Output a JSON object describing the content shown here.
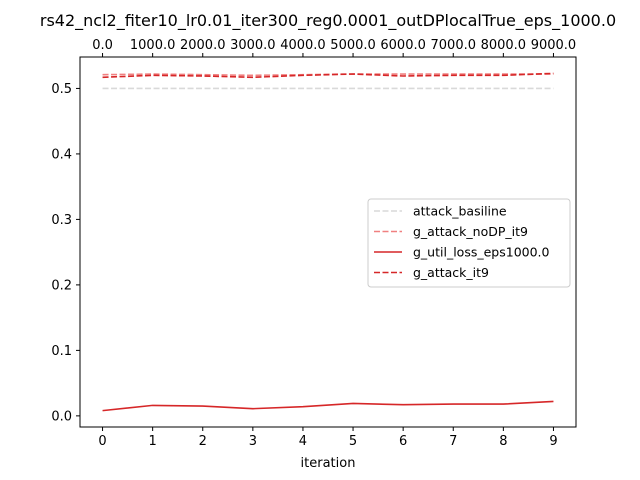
{
  "chart_data": {
    "type": "line",
    "title": "rs42_ncl2_fiter10_lr0.01_iter300_reg0.0001_outDPlocalTrue_eps_1000.0",
    "xlabel": "iteration",
    "ylabel": "",
    "x": [
      0,
      1,
      2,
      3,
      4,
      5,
      6,
      7,
      8,
      9
    ],
    "xticks": [
      "0",
      "1",
      "2",
      "3",
      "4",
      "5",
      "6",
      "7",
      "8",
      "9"
    ],
    "xlim": [
      -0.45,
      9.45
    ],
    "ylim": [
      -0.017,
      0.548
    ],
    "yticks": [
      "0.0",
      "0.1",
      "0.2",
      "0.3",
      "0.4",
      "0.5"
    ],
    "top_xticks": [
      "0.0",
      "1000.0",
      "2000.0",
      "3000.0",
      "4000.0",
      "5000.0",
      "6000.0",
      "7000.0",
      "8000.0",
      "9000.0"
    ],
    "legend_position": "center-right",
    "grid": false,
    "series": [
      {
        "name": "attack_basiline",
        "color": "#d9d9d9",
        "style": "dashed",
        "values": [
          0.5,
          0.5,
          0.5,
          0.5,
          0.5,
          0.5,
          0.5,
          0.5,
          0.5,
          0.5
        ]
      },
      {
        "name": "g_attack_noDP_it9",
        "color": "#f08080",
        "style": "dashed",
        "values": [
          0.521,
          0.522,
          0.521,
          0.52,
          0.521,
          0.522,
          0.522,
          0.522,
          0.522,
          0.522
        ]
      },
      {
        "name": "g_util_loss_eps1000.0",
        "color": "#d62728",
        "style": "solid",
        "values": [
          0.008,
          0.016,
          0.015,
          0.011,
          0.014,
          0.019,
          0.017,
          0.018,
          0.018,
          0.022
        ]
      },
      {
        "name": "g_attack_it9",
        "color": "#d62728",
        "style": "dashed",
        "values": [
          0.517,
          0.52,
          0.519,
          0.517,
          0.52,
          0.522,
          0.519,
          0.52,
          0.52,
          0.523
        ]
      }
    ]
  }
}
